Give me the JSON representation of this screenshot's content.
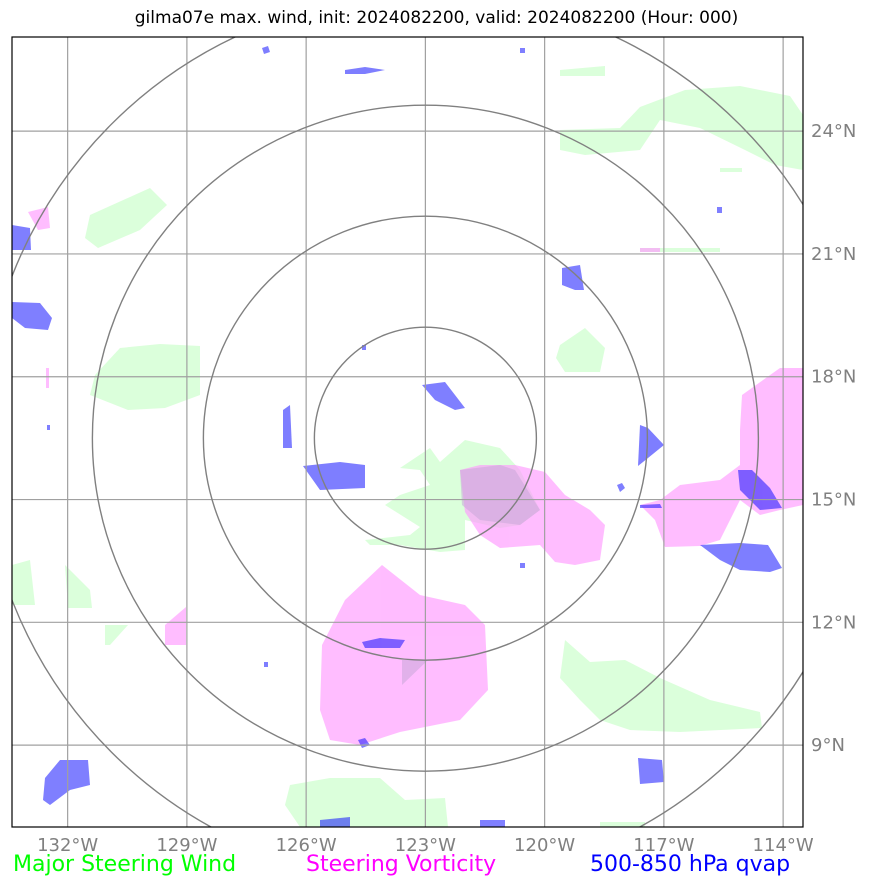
{
  "title": "gilma07e max. wind, init: 2024082200, valid: 2024082200 (Hour: 000)",
  "map": {
    "lon_ticks": [
      "132°W",
      "129°W",
      "126°W",
      "123°W",
      "120°W",
      "117°W",
      "114°W"
    ],
    "lat_ticks": [
      "24°N",
      "21°N",
      "18°N",
      "15°N",
      "12°N",
      "9°N"
    ],
    "lon_values": [
      -132,
      -129,
      -126,
      -123,
      -120,
      -117,
      -114
    ],
    "lat_values": [
      24,
      21,
      18,
      15,
      12,
      9
    ],
    "lon_range": [
      -133.4,
      -113.5
    ],
    "lat_range": [
      7.0,
      26.3
    ],
    "center": {
      "lon": -123,
      "lat": 16.5
    },
    "ring_count": 4,
    "colors": {
      "major_steering_wind": "#ccffcc",
      "steering_vorticity": "#ff99ff",
      "qvap": "#0000ff",
      "grid": "#a0a0a0",
      "rings": "#808080"
    }
  },
  "legend": {
    "wind": {
      "label": "Major Steering Wind",
      "color": "#00ff00"
    },
    "vorticity": {
      "label": "Steering Vorticity",
      "color": "#ff00ff"
    },
    "qvap": {
      "label": "500-850 hPa qvap",
      "color": "#0000ff"
    }
  }
}
